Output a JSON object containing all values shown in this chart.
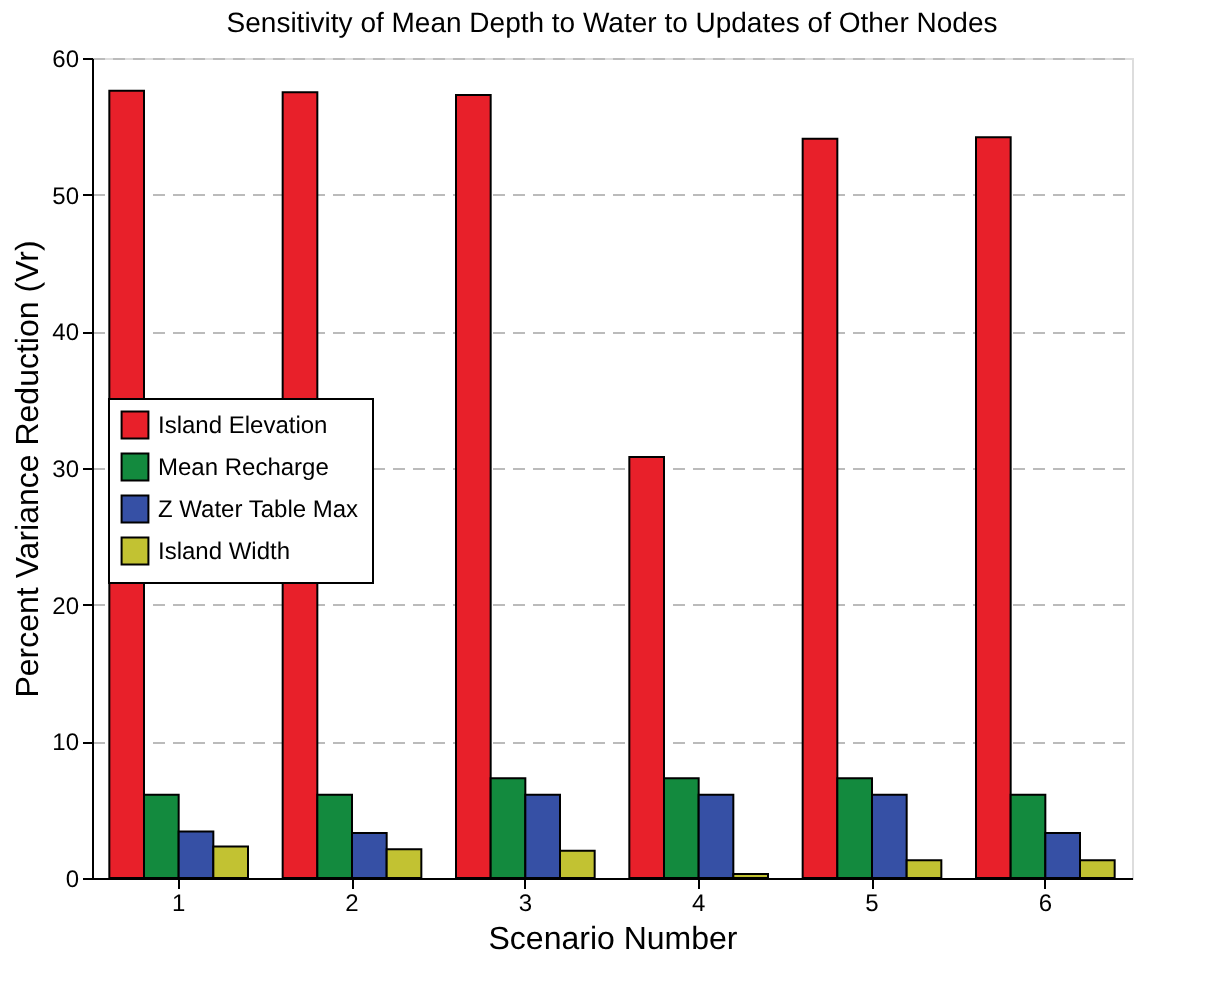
{
  "chart_data": {
    "type": "bar",
    "title": "Sensitivity of Mean Depth to Water to Updates of Other Nodes",
    "xlabel": "Scenario Number",
    "ylabel": "Percent Variance Reduction (Vr)",
    "categories": [
      "1",
      "2",
      "3",
      "4",
      "5",
      "6"
    ],
    "series": [
      {
        "name": "Island Elevation",
        "color": "#e8202a",
        "values": [
          57.6,
          57.5,
          57.3,
          30.8,
          54.1,
          54.2
        ]
      },
      {
        "name": "Mean Recharge",
        "color": "#138a3e",
        "values": [
          6.1,
          6.1,
          7.3,
          7.3,
          7.3,
          6.1
        ]
      },
      {
        "name": "Z Water Table Max",
        "color": "#3650a5",
        "values": [
          3.4,
          3.3,
          6.1,
          6.1,
          6.1,
          3.3
        ]
      },
      {
        "name": "Island Width",
        "color": "#c2c232",
        "values": [
          2.3,
          2.1,
          2.0,
          0.3,
          1.3,
          1.3
        ]
      }
    ],
    "ylim": [
      0,
      60
    ],
    "yticks": [
      0,
      10,
      20,
      30,
      40,
      50,
      60
    ],
    "grid": "y",
    "legend": "left"
  }
}
